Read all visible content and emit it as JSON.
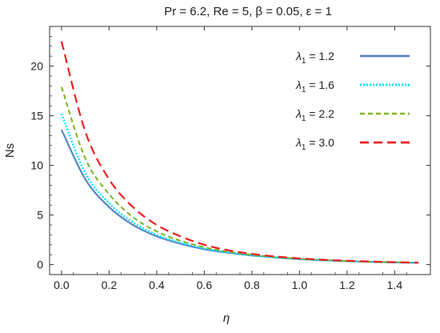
{
  "chart_data": {
    "type": "line",
    "title": "Pr = 6.2, Re = 5, β = 0.05, ε = 1",
    "xlabel": "η",
    "ylabel": "Ns",
    "xlim": [
      -0.05,
      1.55
    ],
    "ylim": [
      -1,
      24
    ],
    "xticks": [
      "0.0",
      "0.2",
      "0.4",
      "0.6",
      "0.8",
      "1.0",
      "1.2",
      "1.4"
    ],
    "yticks": [
      "0",
      "5",
      "10",
      "15",
      "20"
    ],
    "grid": false,
    "legend_position": "top-right",
    "x": [
      0.0,
      0.1,
      0.2,
      0.3,
      0.4,
      0.5,
      0.6,
      0.7,
      0.8,
      0.9,
      1.0,
      1.1,
      1.2,
      1.3,
      1.4,
      1.5
    ],
    "series": [
      {
        "name": "λ1 = 1.2",
        "legend_symbol": "λ",
        "legend_sub": "1",
        "legend_value": " = 1.2",
        "color": "#5b84c4",
        "dash": "solid",
        "values": [
          13.6,
          8.6,
          5.8,
          4.0,
          2.85,
          2.1,
          1.55,
          1.2,
          0.92,
          0.72,
          0.55,
          0.44,
          0.35,
          0.28,
          0.22,
          0.18
        ]
      },
      {
        "name": "λ1 = 1.6",
        "legend_symbol": "λ",
        "legend_sub": "1",
        "legend_value": " = 1.6",
        "color": "#00e5ff",
        "dash": "dotted",
        "values": [
          15.2,
          9.2,
          6.2,
          4.25,
          3.0,
          2.2,
          1.62,
          1.23,
          0.95,
          0.74,
          0.57,
          0.45,
          0.36,
          0.29,
          0.23,
          0.19
        ]
      },
      {
        "name": "λ1 = 2.2",
        "legend_symbol": "λ",
        "legend_sub": "1",
        "legend_value": " = 2.2",
        "color": "#7ab51d",
        "dash": "short-dash",
        "values": [
          17.9,
          10.7,
          7.1,
          4.8,
          3.35,
          2.4,
          1.75,
          1.3,
          1.0,
          0.77,
          0.59,
          0.47,
          0.37,
          0.3,
          0.24,
          0.2
        ]
      },
      {
        "name": "λ1 = 3.0",
        "legend_symbol": "λ",
        "legend_sub": "1",
        "legend_value": " = 3.0",
        "color": "#f02020",
        "dash": "long-dash",
        "values": [
          22.5,
          13.4,
          8.6,
          5.8,
          4.0,
          2.85,
          2.0,
          1.45,
          1.08,
          0.82,
          0.63,
          0.49,
          0.39,
          0.31,
          0.25,
          0.2
        ]
      }
    ]
  }
}
